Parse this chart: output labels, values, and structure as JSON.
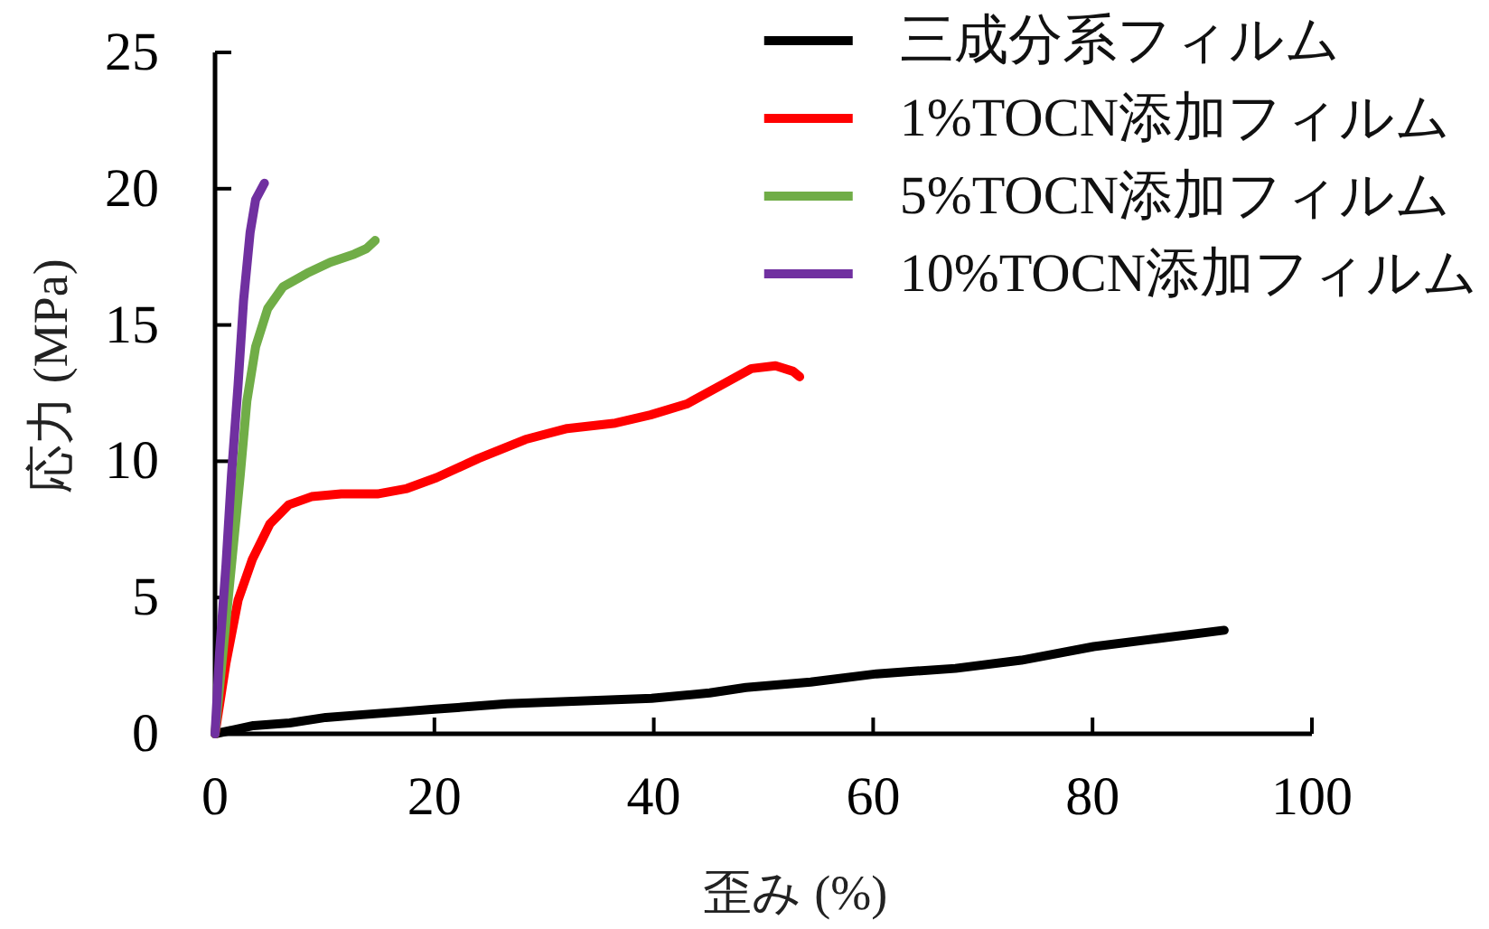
{
  "chart_data": {
    "type": "line",
    "xlabel": "歪み (%)",
    "ylabel": "応力 (MPa)",
    "xlim": [
      0,
      100
    ],
    "ylim": [
      0,
      25
    ],
    "xticks": [
      0,
      20,
      40,
      60,
      80,
      100
    ],
    "yticks": [
      0,
      5,
      10,
      15,
      20,
      25
    ],
    "legend": "top right",
    "line_style": "solid",
    "series": [
      {
        "name": "三成分系フィルム",
        "color": "#000000",
        "x": [
          0,
          3.5,
          6.8,
          10.1,
          13.4,
          16.7,
          20,
          26.6,
          33.2,
          39.8,
          45.1,
          48.4,
          54.3,
          60.3,
          67.5,
          73.5,
          80.1,
          86,
          92
        ],
        "values": [
          0,
          0.3,
          0.4,
          0.6,
          0.7,
          0.8,
          0.9,
          1.1,
          1.2,
          1.3,
          1.5,
          1.7,
          1.9,
          2.2,
          2.4,
          2.7,
          3.2,
          3.5,
          3.8
        ]
      },
      {
        "name": "1%TOCN添加フィルム",
        "color": "#ff0000",
        "x": [
          0,
          1,
          2.1,
          3.4,
          5,
          6.7,
          8.8,
          11.5,
          14.8,
          17.5,
          20.2,
          24,
          28.3,
          32.1,
          36.5,
          39.7,
          43,
          46.2,
          48.9,
          51.1,
          52.7,
          53.3
        ],
        "values": [
          0,
          2.6,
          4.9,
          6.4,
          7.7,
          8.4,
          8.7,
          8.8,
          8.8,
          9,
          9.4,
          10.1,
          10.8,
          11.2,
          11.4,
          11.7,
          12.1,
          12.8,
          13.4,
          13.5,
          13.3,
          13.1
        ]
      },
      {
        "name": "5%TOCN添加フィルム",
        "color": "#70ad47",
        "x": [
          0,
          0.7,
          1.5,
          2.3,
          2.9,
          3.7,
          4.8,
          6.2,
          8.4,
          10.5,
          12.7,
          13.8,
          14.6
        ],
        "values": [
          0,
          2.9,
          6.2,
          9.5,
          12.2,
          14.2,
          15.6,
          16.4,
          16.9,
          17.3,
          17.6,
          17.8,
          18.1
        ]
      },
      {
        "name": "10%TOCN添加フィルム",
        "color": "#7030a0",
        "x": [
          0,
          0.4,
          1,
          1.5,
          2.1,
          2.6,
          3.2,
          3.7,
          4.5
        ],
        "values": [
          0,
          2.9,
          6.2,
          9.5,
          12.8,
          15.9,
          18.4,
          19.6,
          20.2
        ]
      }
    ]
  }
}
